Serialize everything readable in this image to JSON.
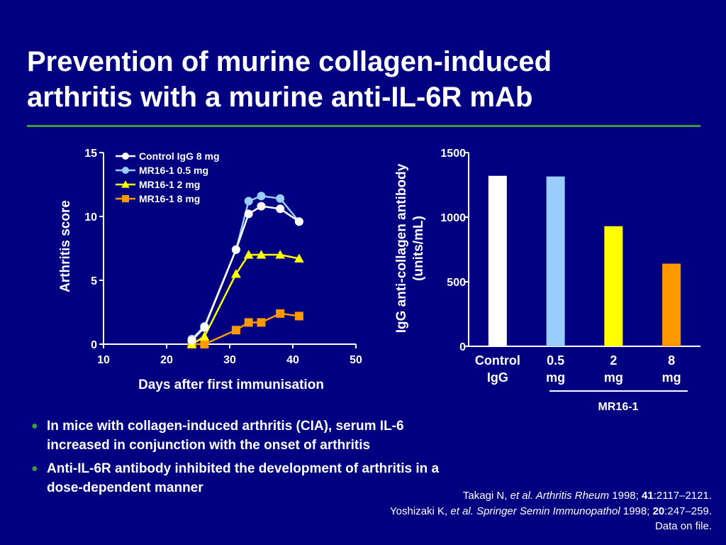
{
  "slide": {
    "title_lines": [
      "Prevention of murine collagen-induced",
      "arthritis with a murine anti-IL-6R mAb"
    ],
    "accent_color": "#3c9b3c",
    "background_color": "#000080"
  },
  "bullets": [
    {
      "line1": "In mice with collagen-induced arthritis (CIA), serum IL-6",
      "line2": "increased in conjunction with the onset of arthritis"
    },
    {
      "line1": "Anti-IL-6R antibody inhibited the development of arthritis in a",
      "line2": "dose-dependent manner"
    }
  ],
  "references": {
    "ref1": {
      "authors": "Takagi N,",
      "journal": "et al. Arthritis Rheum",
      "year": "1998;",
      "volume": "41",
      "pages": ":2117–2121."
    },
    "ref2": {
      "authors": "Yoshizaki K,",
      "journal": "et al. Springer Semin Immunopathol",
      "year": "1998;",
      "volume": "20",
      "pages": ":247–259."
    },
    "note": "Data on file."
  },
  "chart_data": [
    {
      "type": "line",
      "xlabel": "Days after first immunisation",
      "ylabel": "Arthritis score",
      "xlim": [
        10,
        50
      ],
      "ylim": [
        0,
        15
      ],
      "xticks": [
        10,
        20,
        30,
        40,
        50
      ],
      "yticks": [
        0,
        5,
        10,
        15
      ],
      "legend_position": "top-left",
      "series": [
        {
          "name": "Control IgG 8 mg",
          "color": "#ffffff",
          "marker": "circle",
          "x": [
            24,
            26,
            31,
            33,
            35,
            38,
            41
          ],
          "y": [
            0.3,
            1.3,
            7.4,
            10.2,
            10.8,
            10.6,
            9.6
          ]
        },
        {
          "name": "MR16-1 0.5 mg",
          "color": "#99ccff",
          "marker": "circle",
          "x": [
            24,
            26,
            31,
            33,
            35,
            38,
            41
          ],
          "y": [
            0.4,
            1.4,
            7.4,
            11.2,
            11.6,
            11.4,
            9.6
          ]
        },
        {
          "name": "MR16-1 2 mg",
          "color": "#ffff00",
          "marker": "triangle",
          "x": [
            24,
            26,
            31,
            33,
            35,
            38,
            41
          ],
          "y": [
            0.0,
            0.6,
            5.5,
            7.0,
            7.0,
            7.0,
            6.7
          ]
        },
        {
          "name": "MR16-1 8 mg",
          "color": "#ff9900",
          "marker": "square",
          "x": [
            24,
            26,
            31,
            33,
            35,
            38,
            41
          ],
          "y": [
            0.0,
            0.0,
            1.1,
            1.7,
            1.7,
            2.4,
            2.2
          ]
        }
      ]
    },
    {
      "type": "bar",
      "ylabel_lines": [
        "IgG anti-collagen antibody",
        "(units/mL)"
      ],
      "ylim": [
        0,
        1500
      ],
      "yticks": [
        0,
        500,
        1000,
        1500
      ],
      "categories": [
        {
          "lines": [
            "Control",
            "IgG"
          ],
          "value": 1320,
          "color": "#ffffff"
        },
        {
          "lines": [
            "0.5",
            "mg"
          ],
          "value": 1315,
          "color": "#99ccff"
        },
        {
          "lines": [
            "2",
            "mg"
          ],
          "value": 930,
          "color": "#ffff00"
        },
        {
          "lines": [
            "8",
            "mg"
          ],
          "value": 640,
          "color": "#ff9900"
        }
      ],
      "group_label": "MR16-1"
    }
  ]
}
